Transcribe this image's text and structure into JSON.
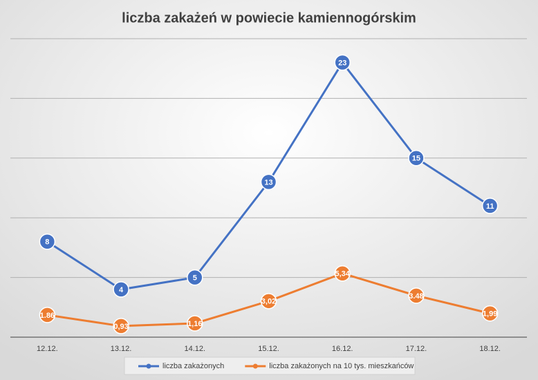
{
  "chart_data": {
    "type": "line",
    "title": "liczba zakażeń w powiecie kamiennogórskim",
    "categories": [
      "12.12.",
      "13.12.",
      "14.12.",
      "15.12.",
      "16.12.",
      "17.12.",
      "18.12."
    ],
    "series": [
      {
        "name": "liczba zakażonych",
        "color": "#4472c4",
        "values": [
          8,
          4,
          5,
          13,
          23,
          15,
          11
        ]
      },
      {
        "name": "liczba zakażonych na 10 tys. mieszkańców",
        "color": "#ed7d31",
        "values": [
          1.86,
          0.93,
          1.16,
          3.02,
          5.34,
          3.48,
          1.99
        ],
        "value_labels": [
          "1.86",
          "0,93",
          "1,16",
          "3,02",
          "5,34",
          "3.48",
          "1,99"
        ]
      }
    ],
    "ylim": [
      0,
      25
    ],
    "yticks": [
      0,
      5,
      10,
      15,
      20,
      25
    ],
    "grid": true
  }
}
